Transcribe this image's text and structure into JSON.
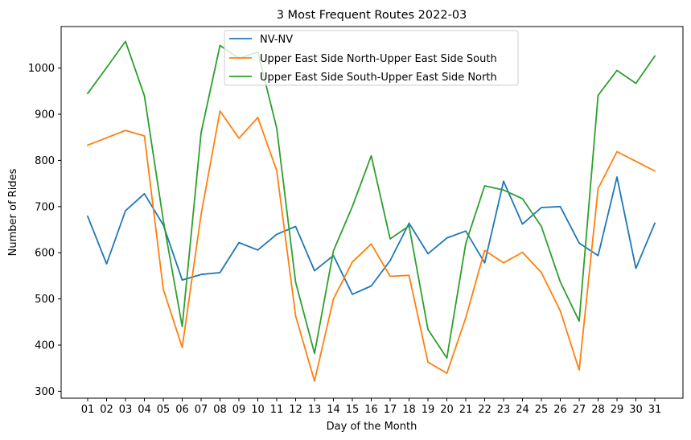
{
  "chart_data": {
    "type": "line",
    "title": "3 Most Frequent Routes 2022-03",
    "xlabel": "Day of the Month",
    "ylabel": "Number of Rides",
    "categories": [
      "01",
      "02",
      "03",
      "04",
      "05",
      "06",
      "07",
      "08",
      "09",
      "10",
      "11",
      "12",
      "13",
      "14",
      "15",
      "16",
      "17",
      "18",
      "19",
      "20",
      "21",
      "22",
      "23",
      "24",
      "25",
      "26",
      "27",
      "28",
      "29",
      "30",
      "31"
    ],
    "yticks": [
      300,
      400,
      500,
      600,
      700,
      800,
      900,
      1000
    ],
    "ylim": [
      285,
      1090
    ],
    "grid": false,
    "legend_position": "upper center",
    "series": [
      {
        "name": "NV-NV",
        "color": "#1f77b4",
        "values": [
          679,
          576,
          691,
          728,
          660,
          541,
          553,
          557,
          622,
          606,
          640,
          657,
          561,
          594,
          510,
          528,
          583,
          664,
          598,
          632,
          647,
          578,
          755,
          662,
          698,
          700,
          621,
          594,
          764,
          566,
          664
        ]
      },
      {
        "name": "Upper East Side North-Upper East Side South",
        "color": "#ff7f0e",
        "values": [
          833,
          849,
          865,
          853,
          521,
          395,
          683,
          907,
          848,
          893,
          778,
          463,
          322,
          500,
          580,
          619,
          549,
          551,
          363,
          339,
          459,
          605,
          578,
          601,
          557,
          474,
          346,
          739,
          819,
          798,
          777
        ]
      },
      {
        "name": "Upper East Side South-Upper East Side North",
        "color": "#2ca02c",
        "values": [
          945,
          1001,
          1058,
          940,
          670,
          440,
          860,
          1049,
          1021,
          1035,
          870,
          536,
          382,
          604,
          700,
          810,
          630,
          658,
          434,
          372,
          620,
          745,
          736,
          717,
          657,
          537,
          452,
          941,
          995,
          967,
          1026
        ]
      }
    ]
  }
}
